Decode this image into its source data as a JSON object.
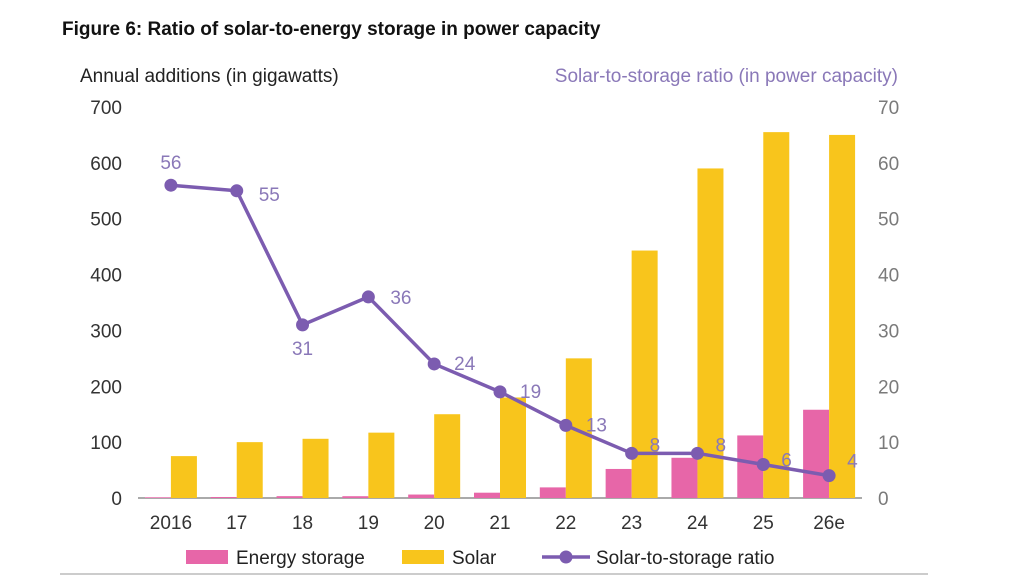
{
  "chart_data": {
    "type": "bar",
    "title": "Figure 6:  Ratio of solar-to-energy storage in power capacity",
    "ylabel": "Annual additions (in gigawatts)",
    "y2label": "Solar-to-storage ratio (in power capacity)",
    "ylim": [
      0,
      700
    ],
    "y2lim": [
      0,
      70
    ],
    "yticks": [
      "700",
      "600",
      "500",
      "400",
      "300",
      "200",
      "100",
      "0"
    ],
    "y2ticks": [
      "70",
      "60",
      "50",
      "40",
      "30",
      "20",
      "10",
      "0"
    ],
    "categories": [
      "2016",
      "17",
      "18",
      "19",
      "20",
      "21",
      "22",
      "23",
      "24",
      "25",
      "26e"
    ],
    "series": [
      {
        "name": "Energy storage",
        "type": "bar",
        "color": "#e766a8",
        "values": [
          1.3,
          1.8,
          3.3,
          3.2,
          6.2,
          9.5,
          19,
          52,
          72,
          112,
          158
        ]
      },
      {
        "name": "Solar",
        "type": "bar",
        "color": "#f8c51c",
        "values": [
          75,
          100,
          106,
          117,
          150,
          180,
          250,
          443,
          590,
          655,
          650
        ]
      },
      {
        "name": "Solar-to-storage ratio",
        "type": "line",
        "axis": "right",
        "color": "#7c5cb0",
        "values": [
          56,
          55,
          31,
          36,
          24,
          19,
          13,
          8,
          8,
          6,
          4
        ],
        "labels": [
          "56",
          "55",
          "31",
          "36",
          "24",
          "19",
          "13",
          "8",
          "8",
          "6",
          "4"
        ]
      }
    ],
    "grid": false,
    "legend": "bottom"
  }
}
